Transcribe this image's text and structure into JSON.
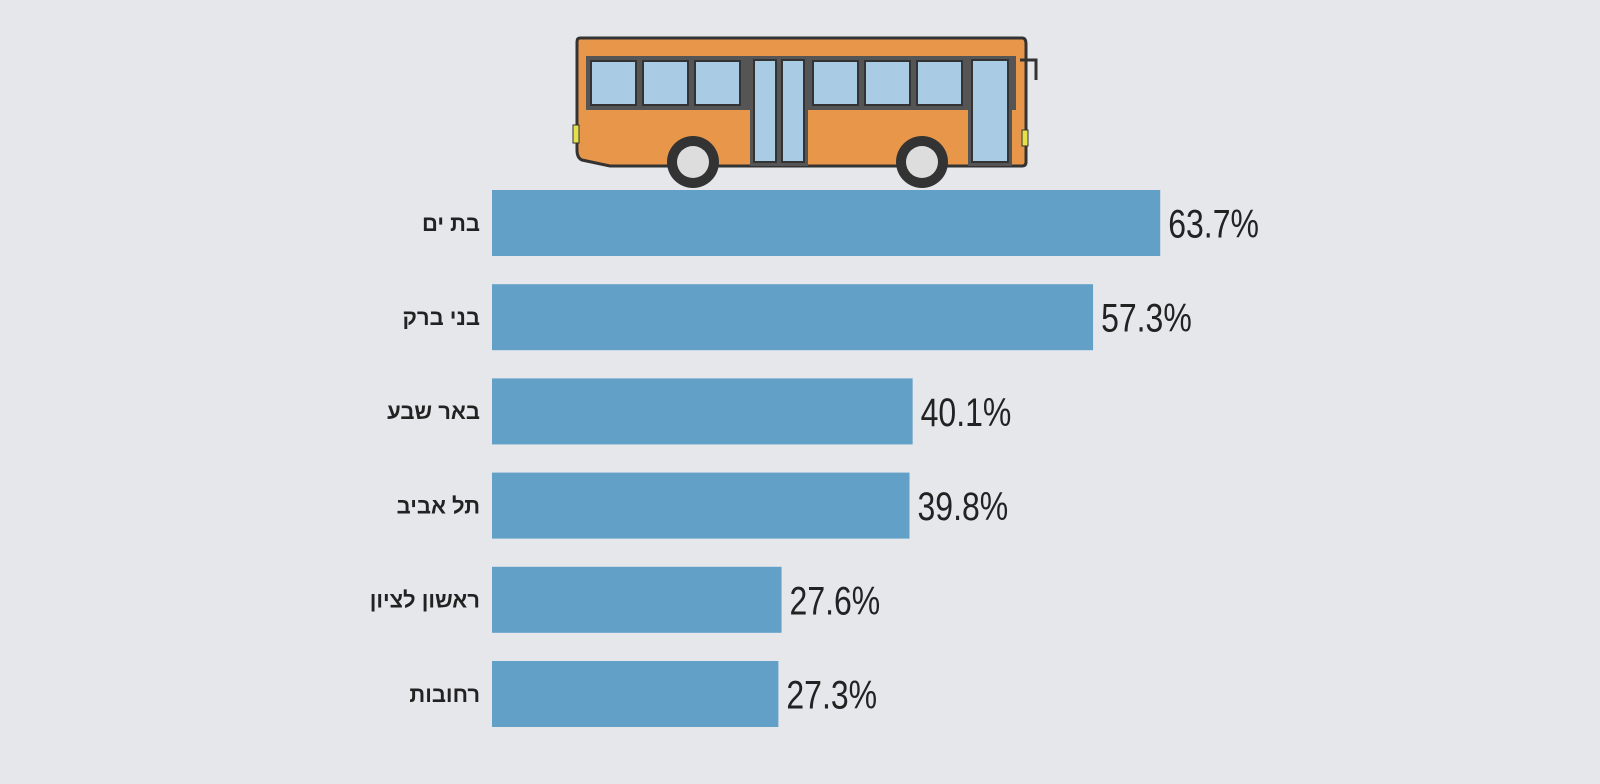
{
  "chart_data": {
    "type": "bar",
    "orientation": "horizontal",
    "categories": [
      "בת ים",
      "בני ברק",
      "באר שבע",
      "תל אביב",
      "ראשון לציון",
      "רחובות"
    ],
    "values": [
      63.7,
      57.3,
      40.1,
      39.8,
      27.6,
      27.3
    ],
    "value_labels": [
      "63.7%",
      "57.3%",
      "40.1%",
      "39.8%",
      "27.6%",
      "27.3%"
    ],
    "color": "#62a0c8"
  }
}
